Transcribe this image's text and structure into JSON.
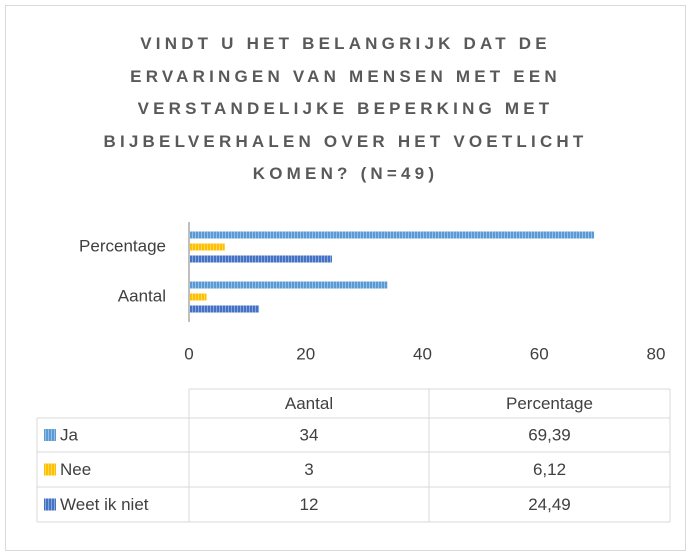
{
  "chart_data": {
    "type": "bar",
    "orientation": "horizontal",
    "title": "VINDT U HET BELANGRIJK DAT DE ERVARINGEN VAN MENSEN MET EEN VERSTANDELIJKE BEPERKING MET BIJBELVERHALEN OVER HET VOETLICHT KOMEN? (N=49)",
    "categories": [
      "Aantal",
      "Percentage"
    ],
    "series": [
      {
        "name": "Ja",
        "color": "#5b9bd5",
        "values": [
          34,
          69.39
        ],
        "value_labels": [
          "34",
          "69,39"
        ]
      },
      {
        "name": "Nee",
        "color": "#ffc000",
        "values": [
          3,
          6.12
        ],
        "value_labels": [
          "3",
          "6,12"
        ]
      },
      {
        "name": "Weet ik niet",
        "color": "#4472c4",
        "values": [
          12,
          24.49
        ],
        "value_labels": [
          "12",
          "24,49"
        ]
      }
    ],
    "xlim": [
      0,
      80
    ],
    "xticks": [
      0,
      20,
      40,
      60,
      80
    ],
    "grid": false,
    "data_table": true
  }
}
